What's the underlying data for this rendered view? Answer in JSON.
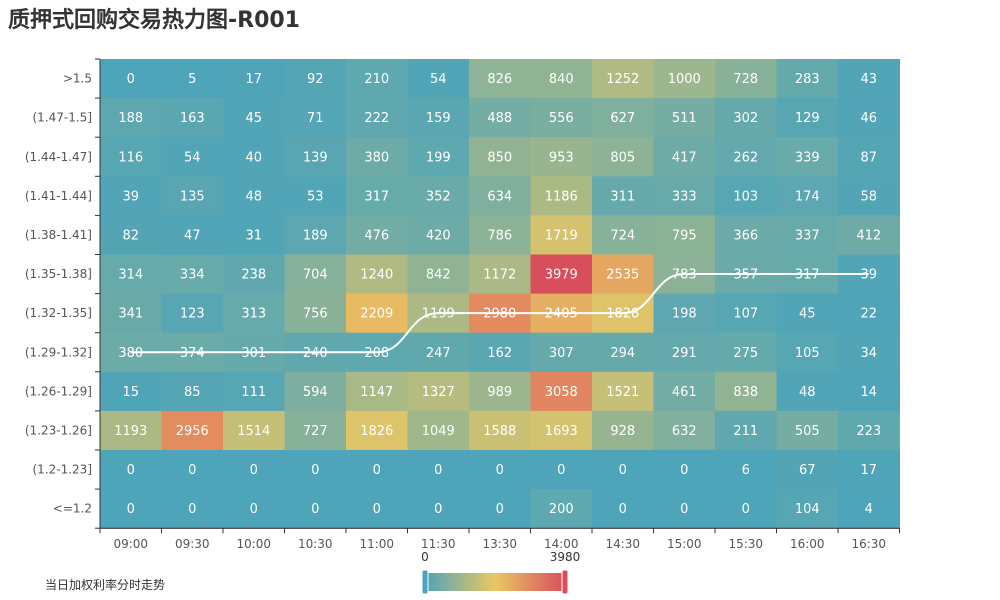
{
  "title": "质押式回购交易热力图-R001",
  "legend_note": "当日加权利率分时走势",
  "colors": {
    "low": "#4ea4b8",
    "mid": "#eac763",
    "high": "#d94e5d",
    "line": "#ffffff"
  },
  "chart_data": {
    "type": "heatmap",
    "x": [
      "09:00",
      "09:30",
      "10:00",
      "10:30",
      "11:00",
      "11:30",
      "13:30",
      "14:00",
      "14:30",
      "15:00",
      "15:30",
      "16:00",
      "16:30"
    ],
    "y": [
      ">1.5",
      "(1.47-1.5]",
      "(1.44-1.47]",
      "(1.41-1.44]",
      "(1.38-1.41]",
      "(1.35-1.38]",
      "(1.32-1.35]",
      "(1.29-1.32]",
      "(1.26-1.29]",
      "(1.23-1.26]",
      "(1.2-1.23]",
      "<=1.2"
    ],
    "values": [
      [
        0,
        5,
        17,
        92,
        210,
        54,
        826,
        840,
        1252,
        1000,
        728,
        283,
        43
      ],
      [
        188,
        163,
        45,
        71,
        222,
        159,
        488,
        556,
        627,
        511,
        302,
        129,
        46
      ],
      [
        116,
        54,
        40,
        139,
        380,
        199,
        850,
        953,
        805,
        417,
        262,
        339,
        87
      ],
      [
        39,
        135,
        48,
        53,
        317,
        352,
        634,
        1186,
        311,
        333,
        103,
        174,
        58
      ],
      [
        82,
        47,
        31,
        189,
        476,
        420,
        786,
        1719,
        724,
        795,
        366,
        337,
        412
      ],
      [
        314,
        334,
        238,
        704,
        1240,
        842,
        1172,
        3979,
        2535,
        783,
        357,
        317,
        39
      ],
      [
        341,
        123,
        313,
        756,
        2209,
        1199,
        2980,
        2405,
        1828,
        198,
        107,
        45,
        22
      ],
      [
        380,
        374,
        301,
        240,
        208,
        247,
        162,
        307,
        294,
        291,
        275,
        105,
        34
      ],
      [
        15,
        85,
        111,
        594,
        1147,
        1327,
        989,
        3058,
        1521,
        461,
        838,
        48,
        14
      ],
      [
        1193,
        2956,
        1514,
        727,
        1826,
        1049,
        1588,
        1693,
        928,
        632,
        211,
        505,
        223
      ],
      [
        0,
        0,
        0,
        0,
        0,
        0,
        0,
        0,
        0,
        0,
        6,
        67,
        17
      ],
      [
        0,
        0,
        0,
        0,
        0,
        0,
        0,
        200,
        0,
        0,
        0,
        104,
        4
      ]
    ],
    "visual_map": {
      "min": 0,
      "max": 3980,
      "min_label": "0",
      "max_label": "3980"
    },
    "weighted_rate_trend": {
      "name": "当日加权利率分时走势",
      "values": [
        "(1.29-1.32]",
        "(1.29-1.32]",
        "(1.29-1.32]",
        "(1.29-1.32]",
        "(1.29-1.32]",
        "(1.32-1.35]",
        "(1.32-1.35]",
        "(1.32-1.35]",
        "(1.32-1.35]",
        "(1.35-1.38]",
        "(1.35-1.38]",
        "(1.35-1.38]",
        "(1.35-1.38]"
      ]
    }
  }
}
